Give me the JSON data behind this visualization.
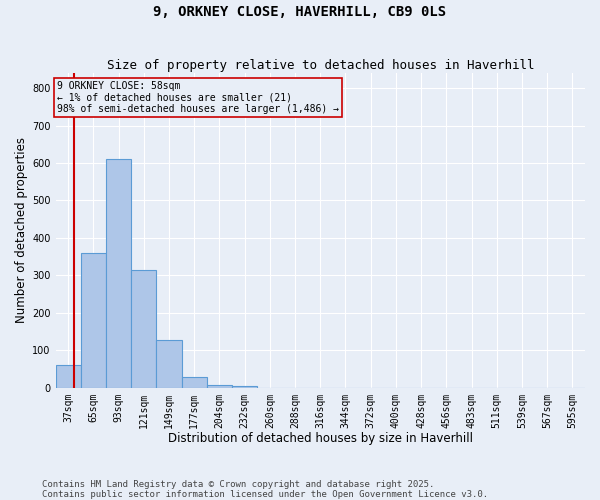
{
  "title": "9, ORKNEY CLOSE, HAVERHILL, CB9 0LS",
  "subtitle": "Size of property relative to detached houses in Haverhill",
  "xlabel": "Distribution of detached houses by size in Haverhill",
  "ylabel": "Number of detached properties",
  "footnote1": "Contains HM Land Registry data © Crown copyright and database right 2025.",
  "footnote2": "Contains public sector information licensed under the Open Government Licence v3.0.",
  "bar_labels": [
    "37sqm",
    "65sqm",
    "93sqm",
    "121sqm",
    "149sqm",
    "177sqm",
    "204sqm",
    "232sqm",
    "260sqm",
    "288sqm",
    "316sqm",
    "344sqm",
    "372sqm",
    "400sqm",
    "428sqm",
    "456sqm",
    "483sqm",
    "511sqm",
    "539sqm",
    "567sqm",
    "595sqm"
  ],
  "bar_heights": [
    60,
    360,
    610,
    315,
    127,
    28,
    8,
    5,
    0,
    0,
    0,
    0,
    0,
    0,
    0,
    0,
    0,
    0,
    0,
    0,
    0
  ],
  "bar_color": "#aec6e8",
  "bar_edge_color": "#5b9bd5",
  "ylim": [
    0,
    840
  ],
  "yticks": [
    0,
    100,
    200,
    300,
    400,
    500,
    600,
    700,
    800
  ],
  "property_line_color": "#cc0000",
  "annotation_text": "9 ORKNEY CLOSE: 58sqm\n← 1% of detached houses are smaller (21)\n98% of semi-detached houses are larger (1,486) →",
  "annotation_box_color": "#cc0000",
  "background_color": "#e8eef7",
  "grid_color": "#ffffff",
  "title_fontsize": 10,
  "subtitle_fontsize": 9,
  "axis_fontsize": 8.5,
  "tick_fontsize": 7,
  "footnote_fontsize": 6.5
}
